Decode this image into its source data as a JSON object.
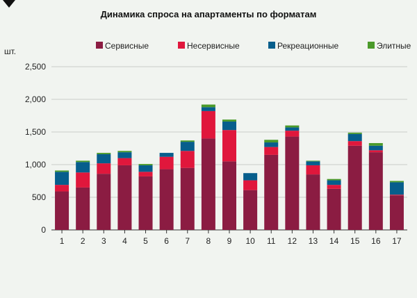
{
  "chart_data": {
    "type": "bar",
    "stacked": true,
    "title": "Динамика спроса на апартаменты по форматам",
    "ylabel": "шт.",
    "xlabel": "",
    "ylim": [
      0,
      2500
    ],
    "yticks": [
      "0",
      "500",
      "1,000",
      "1,500",
      "2,000",
      "2,500"
    ],
    "ytick_values": [
      0,
      500,
      1000,
      1500,
      2000,
      2500
    ],
    "grid": true,
    "legend_position": "top",
    "categories": [
      "1",
      "2",
      "3",
      "4",
      "5",
      "6",
      "7",
      "8",
      "9",
      "10",
      "11",
      "12",
      "13",
      "14",
      "15",
      "16",
      "17"
    ],
    "series": [
      {
        "name": "Сервисные",
        "color": "#8b1c42",
        "values": [
          590,
          650,
          860,
          990,
          820,
          930,
          950,
          1400,
          1050,
          610,
          1150,
          1430,
          850,
          630,
          1290,
          1190,
          530
        ]
      },
      {
        "name": "Несервисные",
        "color": "#e0173c",
        "values": [
          100,
          230,
          160,
          110,
          70,
          190,
          260,
          420,
          480,
          150,
          120,
          90,
          140,
          60,
          70,
          30,
          10
        ]
      },
      {
        "name": "Рекреационные",
        "color": "#075e8c",
        "values": [
          200,
          160,
          140,
          90,
          100,
          60,
          140,
          60,
          130,
          110,
          70,
          50,
          60,
          70,
          110,
          70,
          190
        ]
      },
      {
        "name": "Элитные",
        "color": "#4b9a2a",
        "values": [
          20,
          20,
          20,
          20,
          20,
          0,
          20,
          40,
          30,
          0,
          40,
          30,
          10,
          20,
          20,
          40,
          20
        ]
      }
    ]
  }
}
